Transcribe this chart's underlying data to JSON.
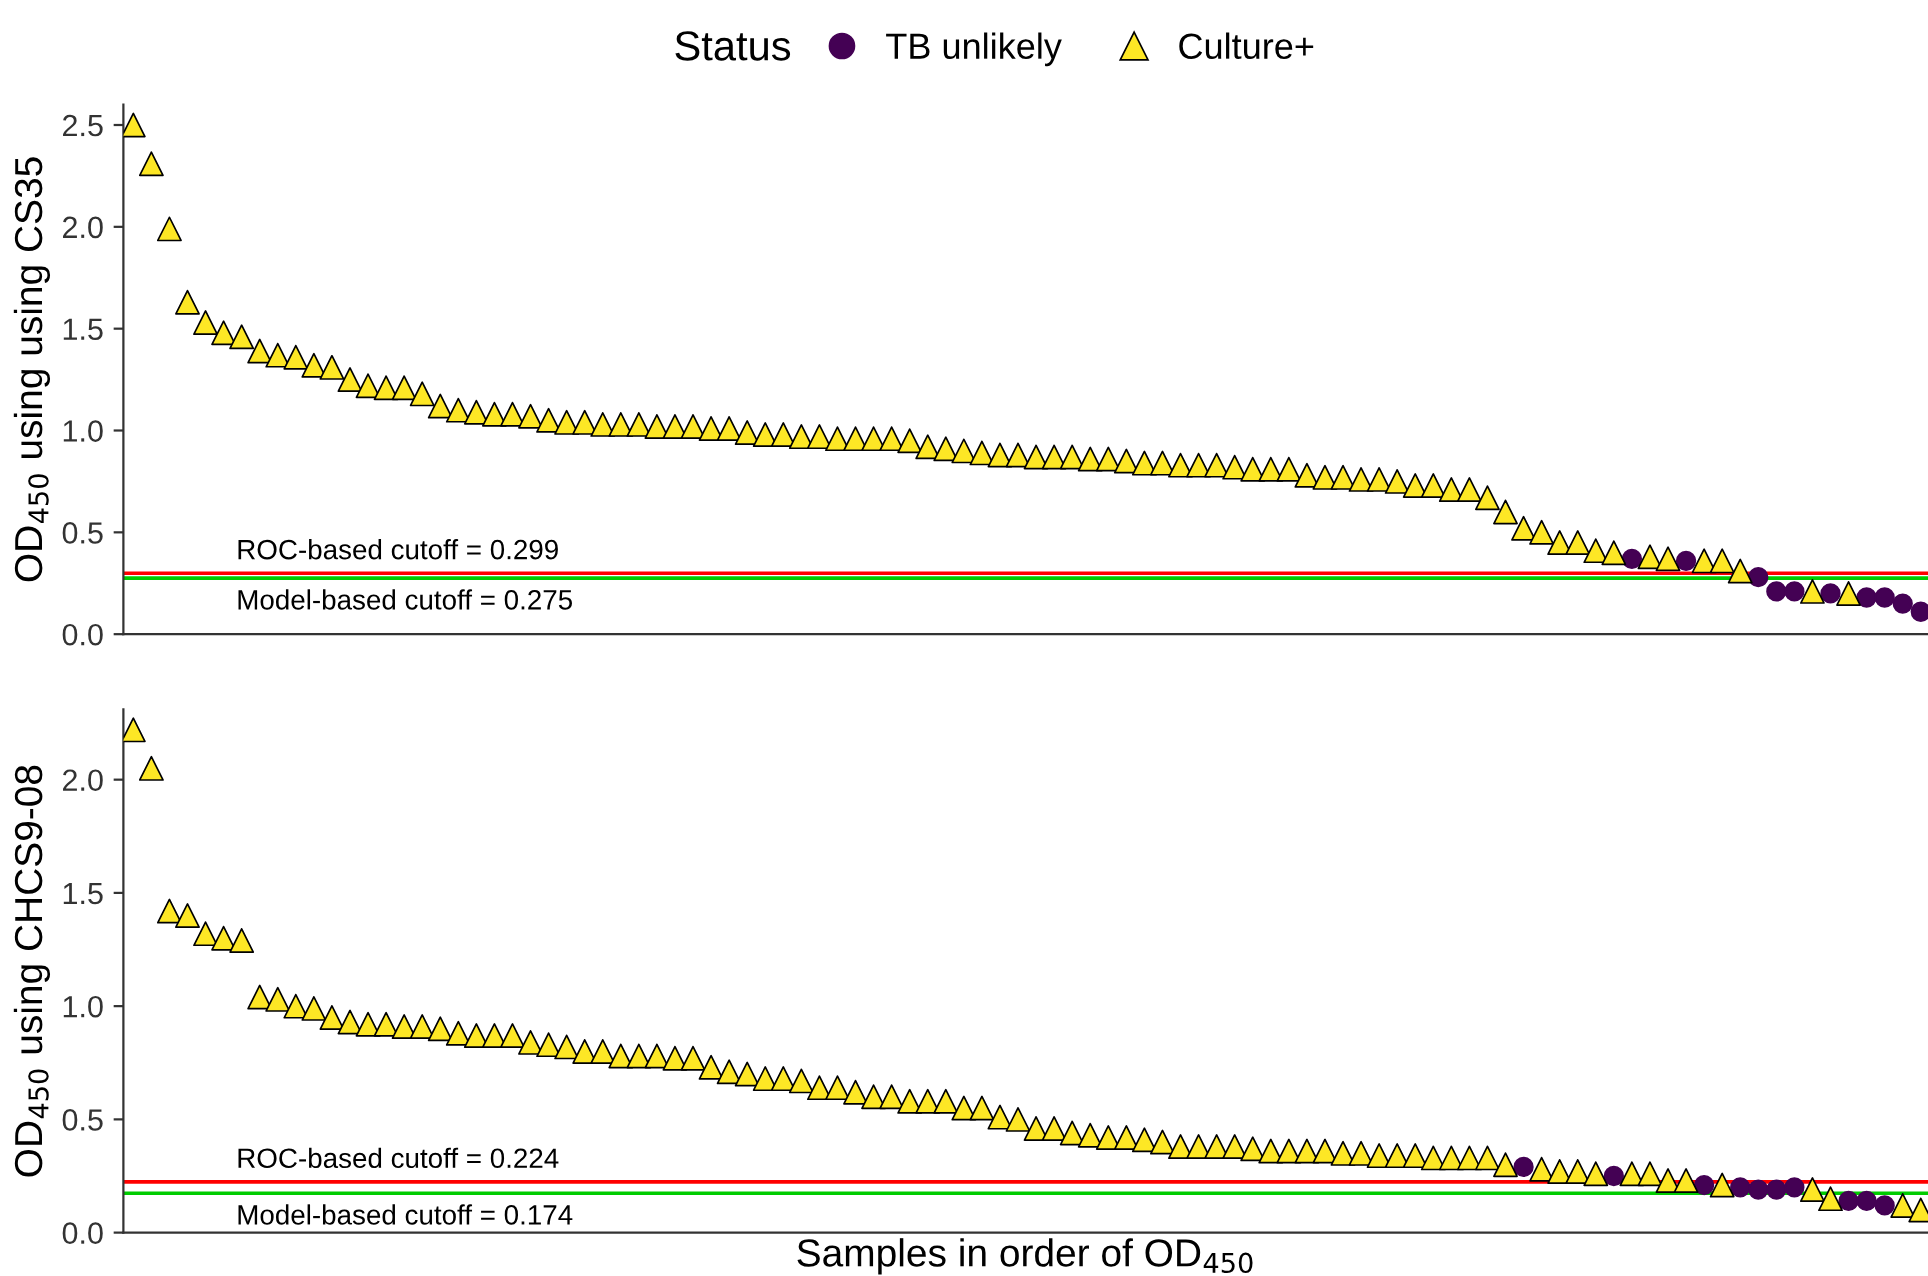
{
  "chart_data": [
    {
      "type": "scatter",
      "legend_title": "Status",
      "legend": "top",
      "tick_labels": "y",
      "ylabel": "OD$_{450}$ using using CS35",
      "categories": [
        null,
        null,
        null,
        null,
        null,
        null,
        null,
        null,
        null,
        null,
        null,
        null,
        null,
        null,
        null,
        null,
        null,
        null,
        null,
        null,
        null,
        null,
        null,
        null,
        null,
        null,
        null,
        null,
        null,
        null,
        null,
        null,
        null,
        null,
        null,
        null,
        null,
        null,
        null,
        null,
        null,
        null,
        null,
        null,
        null,
        null,
        null,
        null,
        null,
        null,
        null,
        null,
        null,
        null,
        null,
        null,
        null,
        null,
        null,
        null,
        null,
        null,
        null,
        null,
        null,
        null,
        null,
        null,
        null,
        null,
        null,
        null,
        null,
        null,
        null,
        null,
        null,
        null,
        null,
        null,
        null,
        null,
        null,
        null,
        null,
        null,
        null,
        null,
        null,
        null,
        null,
        null,
        null,
        null,
        null,
        null,
        null,
        null,
        null,
        null
      ],
      "ylim": [
        0,
        2.6
      ],
      "yticks": [
        {
          "value": 0,
          "label": "0.0"
        },
        0.5,
        {
          "value": 1,
          "label": "1.0"
        },
        1.5,
        {
          "value": 2,
          "label": "2.0"
        },
        2.5
      ],
      "series": [
        {
          "name": "TB unlikely",
          "color": "#440154",
          "marker": "circle",
          "values": [
            null,
            null,
            null,
            null,
            null,
            null,
            null,
            null,
            null,
            null,
            null,
            null,
            null,
            null,
            null,
            null,
            null,
            null,
            null,
            null,
            null,
            null,
            null,
            null,
            null,
            null,
            null,
            null,
            null,
            null,
            null,
            null,
            null,
            null,
            null,
            null,
            null,
            null,
            null,
            null,
            null,
            null,
            null,
            null,
            null,
            null,
            null,
            null,
            null,
            null,
            null,
            null,
            null,
            null,
            null,
            null,
            null,
            null,
            null,
            null,
            null,
            null,
            null,
            null,
            null,
            null,
            null,
            null,
            null,
            null,
            null,
            null,
            null,
            null,
            null,
            null,
            null,
            null,
            null,
            null,
            null,
            null,
            null,
            0.37,
            null,
            null,
            0.36,
            null,
            null,
            null,
            0.28,
            0.21,
            0.21,
            null,
            0.2,
            null,
            0.18,
            0.18,
            0.15,
            0.11
          ]
        },
        {
          "name": "Culture+",
          "color": "#fde725",
          "marker": "triangle",
          "values": [
            2.5,
            2.31,
            1.99,
            1.63,
            1.53,
            1.48,
            1.46,
            1.39,
            1.37,
            1.36,
            1.32,
            1.31,
            1.25,
            1.22,
            1.21,
            1.21,
            1.18,
            1.12,
            1.1,
            1.09,
            1.08,
            1.08,
            1.07,
            1.05,
            1.04,
            1.04,
            1.03,
            1.03,
            1.03,
            1.02,
            1.02,
            1.02,
            1.01,
            1.01,
            0.99,
            0.98,
            0.98,
            0.97,
            0.97,
            0.96,
            0.96,
            0.96,
            0.96,
            0.95,
            0.92,
            0.91,
            0.9,
            0.89,
            0.88,
            0.88,
            0.87,
            0.87,
            0.87,
            0.86,
            0.86,
            0.85,
            0.84,
            0.84,
            0.83,
            0.83,
            0.83,
            0.82,
            0.81,
            0.81,
            0.81,
            0.78,
            0.77,
            0.77,
            0.76,
            0.76,
            0.75,
            0.73,
            0.73,
            0.71,
            0.71,
            0.67,
            0.6,
            0.52,
            0.5,
            0.45,
            0.45,
            0.41,
            0.4,
            null,
            0.38,
            0.37,
            null,
            0.36,
            0.36,
            0.31,
            null,
            null,
            null,
            0.21,
            null,
            0.2,
            null,
            null,
            null,
            null
          ]
        }
      ],
      "ref_lines": [
        {
          "axis": "y",
          "value": 0.299,
          "label": "ROC-based cutoff = 0.299",
          "color": "#ff0000"
        },
        {
          "axis": "y",
          "value": 0.275,
          "label": "Model-based cutoff = 0.275",
          "color": "#00cc00"
        }
      ]
    },
    {
      "type": "scatter",
      "legend": false,
      "tick_labels": "y",
      "ylabel": "OD$_{450}$ using CHCS9-08",
      "xlabel": "Samples in order of OD$_{450}$",
      "categories": [
        null,
        null,
        null,
        null,
        null,
        null,
        null,
        null,
        null,
        null,
        null,
        null,
        null,
        null,
        null,
        null,
        null,
        null,
        null,
        null,
        null,
        null,
        null,
        null,
        null,
        null,
        null,
        null,
        null,
        null,
        null,
        null,
        null,
        null,
        null,
        null,
        null,
        null,
        null,
        null,
        null,
        null,
        null,
        null,
        null,
        null,
        null,
        null,
        null,
        null,
        null,
        null,
        null,
        null,
        null,
        null,
        null,
        null,
        null,
        null,
        null,
        null,
        null,
        null,
        null,
        null,
        null,
        null,
        null,
        null,
        null,
        null,
        null,
        null,
        null,
        null,
        null,
        null,
        null,
        null,
        null,
        null,
        null,
        null,
        null,
        null,
        null,
        null,
        null,
        null,
        null,
        null,
        null,
        null,
        null,
        null,
        null,
        null,
        null,
        null
      ],
      "ylim": [
        0,
        2.31
      ],
      "yticks": [
        {
          "value": 0,
          "label": "0.0"
        },
        0.5,
        {
          "value": 1,
          "label": "1.0"
        },
        1.5,
        {
          "value": 2,
          "label": "2.0"
        }
      ],
      "series": [
        {
          "color": "#440154",
          "marker": "circle",
          "values": [
            null,
            null,
            null,
            null,
            null,
            null,
            null,
            null,
            null,
            null,
            null,
            null,
            null,
            null,
            null,
            null,
            null,
            null,
            null,
            null,
            null,
            null,
            null,
            null,
            null,
            null,
            null,
            null,
            null,
            null,
            null,
            null,
            null,
            null,
            null,
            null,
            null,
            null,
            null,
            null,
            null,
            null,
            null,
            null,
            null,
            null,
            null,
            null,
            null,
            null,
            null,
            null,
            null,
            null,
            null,
            null,
            null,
            null,
            null,
            null,
            null,
            null,
            null,
            null,
            null,
            null,
            null,
            null,
            null,
            null,
            null,
            null,
            null,
            null,
            null,
            null,
            null,
            0.29,
            null,
            null,
            null,
            null,
            0.25,
            null,
            null,
            null,
            null,
            0.21,
            null,
            0.2,
            0.19,
            0.19,
            0.2,
            null,
            null,
            0.14,
            0.14,
            0.12,
            null,
            null
          ]
        },
        {
          "color": "#fde725",
          "marker": "triangle",
          "values": [
            2.22,
            2.05,
            1.42,
            1.4,
            1.32,
            1.3,
            1.29,
            1.04,
            1.03,
            1.0,
            0.99,
            0.95,
            0.93,
            0.92,
            0.92,
            0.91,
            0.91,
            0.9,
            0.88,
            0.87,
            0.87,
            0.87,
            0.84,
            0.83,
            0.82,
            0.8,
            0.8,
            0.78,
            0.78,
            0.78,
            0.77,
            0.77,
            0.73,
            0.71,
            0.7,
            0.68,
            0.68,
            0.67,
            0.64,
            0.64,
            0.62,
            0.6,
            0.6,
            0.58,
            0.58,
            0.58,
            0.55,
            0.55,
            0.51,
            0.5,
            0.46,
            0.46,
            0.44,
            0.43,
            0.42,
            0.42,
            0.41,
            0.4,
            0.38,
            0.38,
            0.38,
            0.38,
            0.37,
            0.36,
            0.36,
            0.36,
            0.36,
            0.35,
            0.35,
            0.34,
            0.34,
            0.34,
            0.33,
            0.33,
            0.33,
            0.33,
            0.3,
            null,
            0.28,
            0.27,
            0.27,
            0.26,
            null,
            0.26,
            0.26,
            0.23,
            0.23,
            null,
            0.21,
            null,
            null,
            null,
            null,
            0.19,
            0.15,
            null,
            null,
            null,
            0.12,
            0.1
          ]
        }
      ],
      "ref_lines": [
        {
          "axis": "y",
          "value": 0.224,
          "label": "ROC-based cutoff = 0.224",
          "color": "#ff0000"
        },
        {
          "axis": "y",
          "value": 0.174,
          "label": "Model-based cutoff = 0.174",
          "color": "#00cc00"
        }
      ]
    }
  ]
}
